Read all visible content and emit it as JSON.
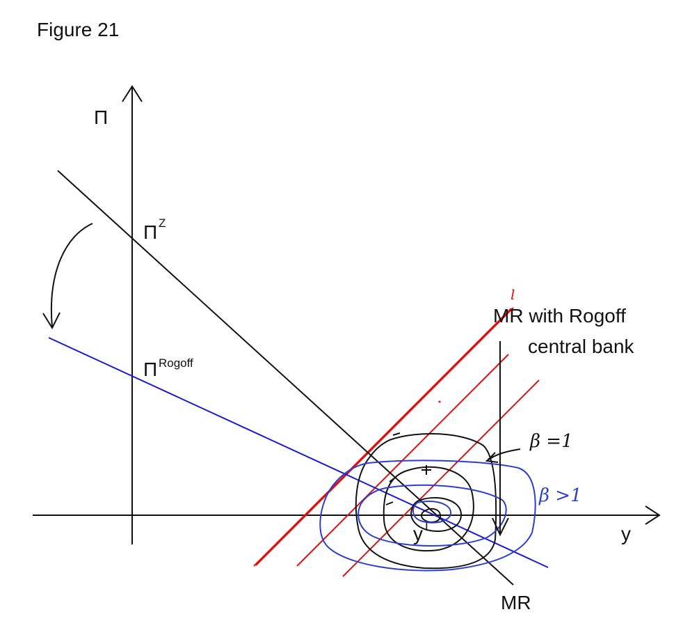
{
  "figure_title": "Figure 21",
  "labels": {
    "y_axis": "Π",
    "x_axis": "y",
    "pi_z_main": "Π",
    "pi_z_sup": "Z",
    "pi_rogoff_main": "Π",
    "pi_rogoff_sup": "Rogoff",
    "y_one_main": "y",
    "y_one_sup": "I",
    "mr": "MR",
    "mr_rogoff_line1": "MR with Rogoff",
    "mr_rogoff_line2": "central bank",
    "beta_one": "β =1",
    "beta_gt_one": "β >1",
    "red_mark": "l"
  },
  "colors": {
    "axis": "#111111",
    "mr_line": "#111111",
    "rogoff_line": "#1a1ad6",
    "pc_lines": "#e01010",
    "black_contours": "#111111",
    "blue_contours": "#2a3fd0"
  }
}
